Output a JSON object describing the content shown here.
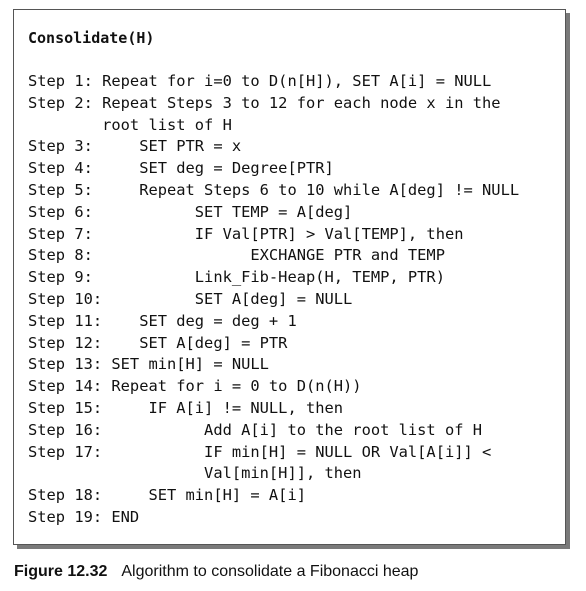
{
  "algorithm": {
    "title": "Consolidate(H)",
    "lines": [
      "Step 1: Repeat for i=0 to D(n[H]), SET A[i] = NULL",
      "Step 2: Repeat Steps 3 to 12 for each node x in the",
      "        root list of H",
      "Step 3:     SET PTR = x",
      "Step 4:     SET deg = Degree[PTR]",
      "Step 5:     Repeat Steps 6 to 10 while A[deg] != NULL",
      "Step 6:           SET TEMP = A[deg]",
      "Step 7:           IF Val[PTR] > Val[TEMP], then",
      "Step 8:                 EXCHANGE PTR and TEMP",
      "Step 9:           Link_Fib-Heap(H, TEMP, PTR)",
      "Step 10:          SET A[deg] = NULL",
      "Step 11:    SET deg = deg + 1",
      "Step 12:    SET A[deg] = PTR",
      "Step 13: SET min[H] = NULL",
      "Step 14: Repeat for i = 0 to D(n(H))",
      "Step 15:     IF A[i] != NULL, then",
      "Step 16:           Add A[i] to the root list of H",
      "Step 17:           IF min[H] = NULL OR Val[A[i]] <",
      "                   Val[min[H]], then",
      "Step 18:     SET min[H] = A[i]",
      "Step 19: END"
    ]
  },
  "caption": {
    "label": "Figure 12.32",
    "text": "Algorithm to consolidate a Fibonacci heap"
  }
}
